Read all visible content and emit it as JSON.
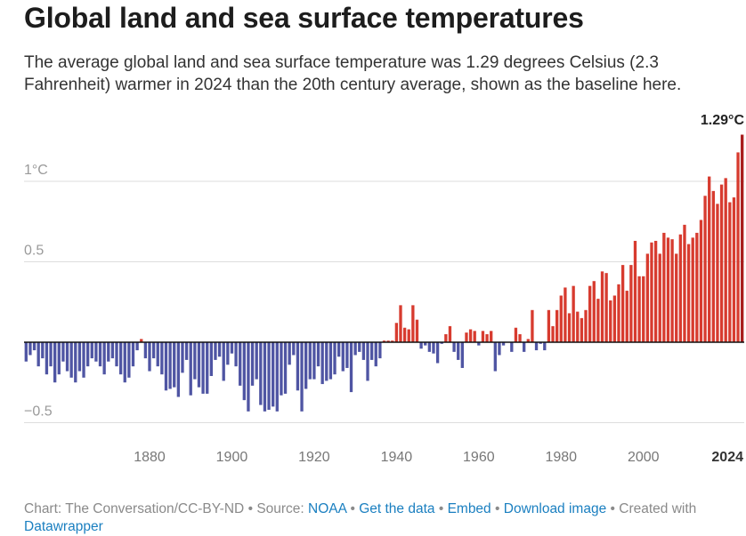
{
  "header": {
    "title": "Global land and sea surface temperatures",
    "subtitle": "The average global land and sea surface temperature was 1.29 degrees Celsius (2.3 Fahrenheit) warmer in 2024 than the 20th century average, shown as the baseline here."
  },
  "footer": {
    "credit": "Chart: The Conversation/CC-BY-ND",
    "source_prefix": "Source:",
    "source_link": "NOAA",
    "get_data": "Get the data",
    "embed": "Embed",
    "download": "Download image",
    "created_with": "Created with",
    "tool": "Datawrapper",
    "separator": "•"
  },
  "colors": {
    "positive": "#d73b2f",
    "positive_dark": "#a81c1c",
    "negative": "#4f55a3",
    "baseline": "#111111",
    "grid": "#dddddd"
  },
  "chart_data": {
    "type": "bar",
    "title": "Global land and sea surface temperatures",
    "xlabel": "",
    "ylabel": "",
    "ylim": [
      -0.5,
      1.3
    ],
    "x_ticks": [
      "1880",
      "1900",
      "1920",
      "1940",
      "1960",
      "1980",
      "2000",
      "2024"
    ],
    "y_ticks": [
      {
        "value": 1,
        "label": "1°C"
      },
      {
        "value": 0.5,
        "label": "0.5"
      },
      {
        "value": -0.5,
        "label": "−0.5"
      }
    ],
    "grid": true,
    "annotation": {
      "year": 2024,
      "label": "1.29°C"
    },
    "x": [
      1850,
      1851,
      1852,
      1853,
      1854,
      1855,
      1856,
      1857,
      1858,
      1859,
      1860,
      1861,
      1862,
      1863,
      1864,
      1865,
      1866,
      1867,
      1868,
      1869,
      1870,
      1871,
      1872,
      1873,
      1874,
      1875,
      1876,
      1877,
      1878,
      1879,
      1880,
      1881,
      1882,
      1883,
      1884,
      1885,
      1886,
      1887,
      1888,
      1889,
      1890,
      1891,
      1892,
      1893,
      1894,
      1895,
      1896,
      1897,
      1898,
      1899,
      1900,
      1901,
      1902,
      1903,
      1904,
      1905,
      1906,
      1907,
      1908,
      1909,
      1910,
      1911,
      1912,
      1913,
      1914,
      1915,
      1916,
      1917,
      1918,
      1919,
      1920,
      1921,
      1922,
      1923,
      1924,
      1925,
      1926,
      1927,
      1928,
      1929,
      1930,
      1931,
      1932,
      1933,
      1934,
      1935,
      1936,
      1937,
      1938,
      1939,
      1940,
      1941,
      1942,
      1943,
      1944,
      1945,
      1946,
      1947,
      1948,
      1949,
      1950,
      1951,
      1952,
      1953,
      1954,
      1955,
      1956,
      1957,
      1958,
      1959,
      1960,
      1961,
      1962,
      1963,
      1964,
      1965,
      1966,
      1967,
      1968,
      1969,
      1970,
      1971,
      1972,
      1973,
      1974,
      1975,
      1976,
      1977,
      1978,
      1979,
      1980,
      1981,
      1982,
      1983,
      1984,
      1985,
      1986,
      1987,
      1988,
      1989,
      1990,
      1991,
      1992,
      1993,
      1994,
      1995,
      1996,
      1997,
      1998,
      1999,
      2000,
      2001,
      2002,
      2003,
      2004,
      2005,
      2006,
      2007,
      2008,
      2009,
      2010,
      2011,
      2012,
      2013,
      2014,
      2015,
      2016,
      2017,
      2018,
      2019,
      2020,
      2021,
      2022,
      2023,
      2024
    ],
    "values": [
      -0.12,
      -0.08,
      -0.05,
      -0.15,
      -0.1,
      -0.2,
      -0.15,
      -0.25,
      -0.2,
      -0.12,
      -0.18,
      -0.22,
      -0.25,
      -0.18,
      -0.22,
      -0.15,
      -0.1,
      -0.12,
      -0.15,
      -0.2,
      -0.12,
      -0.1,
      -0.15,
      -0.2,
      -0.25,
      -0.22,
      -0.15,
      -0.05,
      0.02,
      -0.1,
      -0.18,
      -0.1,
      -0.15,
      -0.2,
      -0.3,
      -0.29,
      -0.28,
      -0.34,
      -0.19,
      -0.11,
      -0.33,
      -0.23,
      -0.28,
      -0.32,
      -0.32,
      -0.21,
      -0.11,
      -0.09,
      -0.24,
      -0.14,
      -0.07,
      -0.15,
      -0.27,
      -0.36,
      -0.43,
      -0.27,
      -0.23,
      -0.39,
      -0.43,
      -0.42,
      -0.4,
      -0.43,
      -0.33,
      -0.32,
      -0.14,
      -0.08,
      -0.3,
      -0.43,
      -0.29,
      -0.23,
      -0.23,
      -0.15,
      -0.26,
      -0.24,
      -0.23,
      -0.2,
      -0.09,
      -0.18,
      -0.16,
      -0.31,
      -0.08,
      -0.06,
      -0.11,
      -0.24,
      -0.11,
      -0.15,
      -0.1,
      0.01,
      0.01,
      0.01,
      0.12,
      0.23,
      0.09,
      0.08,
      0.23,
      0.14,
      -0.04,
      -0.02,
      -0.06,
      -0.07,
      -0.13,
      -0.01,
      0.05,
      0.1,
      -0.06,
      -0.11,
      -0.16,
      0.06,
      0.08,
      0.07,
      -0.02,
      0.07,
      0.05,
      0.07,
      -0.18,
      -0.08,
      -0.02,
      0.0,
      -0.06,
      0.09,
      0.05,
      -0.06,
      0.02,
      0.2,
      -0.05,
      -0.01,
      -0.05,
      0.2,
      0.1,
      0.2,
      0.29,
      0.34,
      0.18,
      0.35,
      0.19,
      0.15,
      0.2,
      0.35,
      0.38,
      0.27,
      0.44,
      0.43,
      0.26,
      0.29,
      0.36,
      0.48,
      0.32,
      0.48,
      0.63,
      0.41,
      0.41,
      0.55,
      0.62,
      0.63,
      0.55,
      0.68,
      0.65,
      0.64,
      0.55,
      0.67,
      0.73,
      0.61,
      0.65,
      0.68,
      0.76,
      0.91,
      1.03,
      0.94,
      0.86,
      0.98,
      1.02,
      0.87,
      0.9,
      1.18,
      1.29
    ]
  }
}
